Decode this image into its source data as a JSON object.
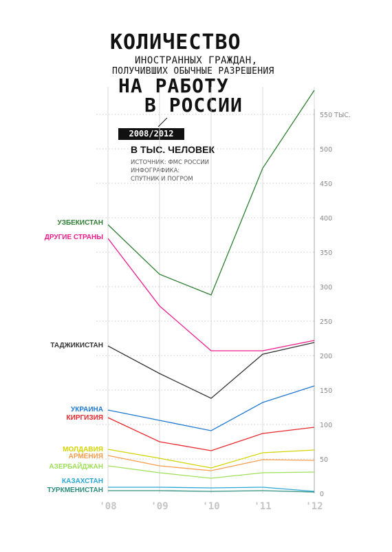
{
  "header": {
    "title_line1": "КОЛИЧЕСТВО",
    "title_line2": "ИНОСТРАННЫХ ГРАЖДАН,",
    "title_line3": "ПОЛУЧИВШИХ ОБЫЧНЫЕ РАЗРЕШЕНИЯ",
    "title_line4": "НА РАБОТУ",
    "title_line5": "В РОССИИ",
    "period": "2008/2012",
    "units": "В ТЫС. ЧЕЛОВЕК",
    "source": "ИСТОЧНИК: ФМС РОССИИ",
    "credit_line1": "ИНФОГРАФИКА:",
    "credit_line2": "СПУТНИК И ПОГРОМ"
  },
  "chart_data": {
    "type": "line",
    "x": [
      "'08",
      "'09",
      "'10",
      "'11",
      "'12"
    ],
    "ylim": [
      0,
      590
    ],
    "yticks": [
      0,
      50,
      100,
      150,
      200,
      250,
      300,
      350,
      400,
      450,
      500,
      550
    ],
    "ytick_labels": [
      "0",
      "50",
      "100",
      "150",
      "200",
      "250",
      "300",
      "350",
      "400",
      "450",
      "500",
      "550 ТЫС."
    ],
    "grid": true,
    "series": [
      {
        "name": "УЗБЕКИСТАН",
        "color": "#2e7d32",
        "values": [
          390,
          318,
          288,
          472,
          585
        ]
      },
      {
        "name": "ДРУГИЕ СТРАНЫ",
        "color": "#ec1c8c",
        "values": [
          370,
          272,
          207,
          207,
          222
        ]
      },
      {
        "name": "ТАДЖИКИСТАН",
        "color": "#333333",
        "values": [
          214,
          174,
          138,
          202,
          219
        ]
      },
      {
        "name": "УКРАИНА",
        "color": "#1e78d2",
        "values": [
          121,
          106,
          91,
          132,
          156
        ]
      },
      {
        "name": "КИРГИЗИЯ",
        "color": "#e8262b",
        "values": [
          110,
          75,
          62,
          87,
          96
        ]
      },
      {
        "name": "МОЛДАВИЯ",
        "color": "#d4d400",
        "values": [
          64,
          51,
          37,
          59,
          63
        ]
      },
      {
        "name": "АРМЕНИЯ",
        "color": "#f59c4a",
        "values": [
          55,
          40,
          33,
          49,
          48
        ]
      },
      {
        "name": "АЗЕРБАЙДЖАН",
        "color": "#9ee05a",
        "values": [
          40,
          30,
          22,
          30,
          31
        ]
      },
      {
        "name": "КАЗАХСТАН",
        "color": "#29a7d6",
        "values": [
          9,
          9,
          8,
          9,
          3
        ]
      },
      {
        "name": "ТУРКМЕНИСТАН",
        "color": "#2a8c7a",
        "values": [
          4,
          4,
          3,
          4,
          2
        ]
      }
    ]
  }
}
